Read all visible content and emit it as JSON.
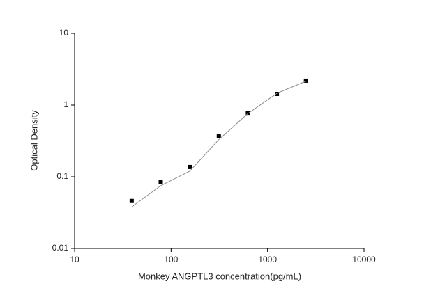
{
  "chart_data": {
    "type": "scatter",
    "xlabel": "Monkey ANGPTL3 concentration(pg/mL)",
    "ylabel": "Optical Density",
    "x": [
      39.06,
      78.125,
      156.25,
      312.5,
      625,
      1250,
      2500
    ],
    "series": [
      {
        "color": "#000000",
        "marker": "square",
        "values": [
          0.046,
          0.085,
          0.137,
          0.366,
          0.78,
          1.43,
          2.19
        ]
      },
      {
        "color": "#888888",
        "marker": "line",
        "values": [
          0.038,
          0.075,
          0.12,
          0.33,
          0.76,
          1.46,
          2.15
        ]
      }
    ],
    "xscale": "log",
    "yscale": "log",
    "xlim": [
      10,
      10000
    ],
    "xticks": [
      10,
      100,
      1000,
      10000
    ],
    "ylim": [
      0.01,
      10
    ],
    "yticks": [
      0.01,
      0.1,
      1,
      10
    ]
  }
}
